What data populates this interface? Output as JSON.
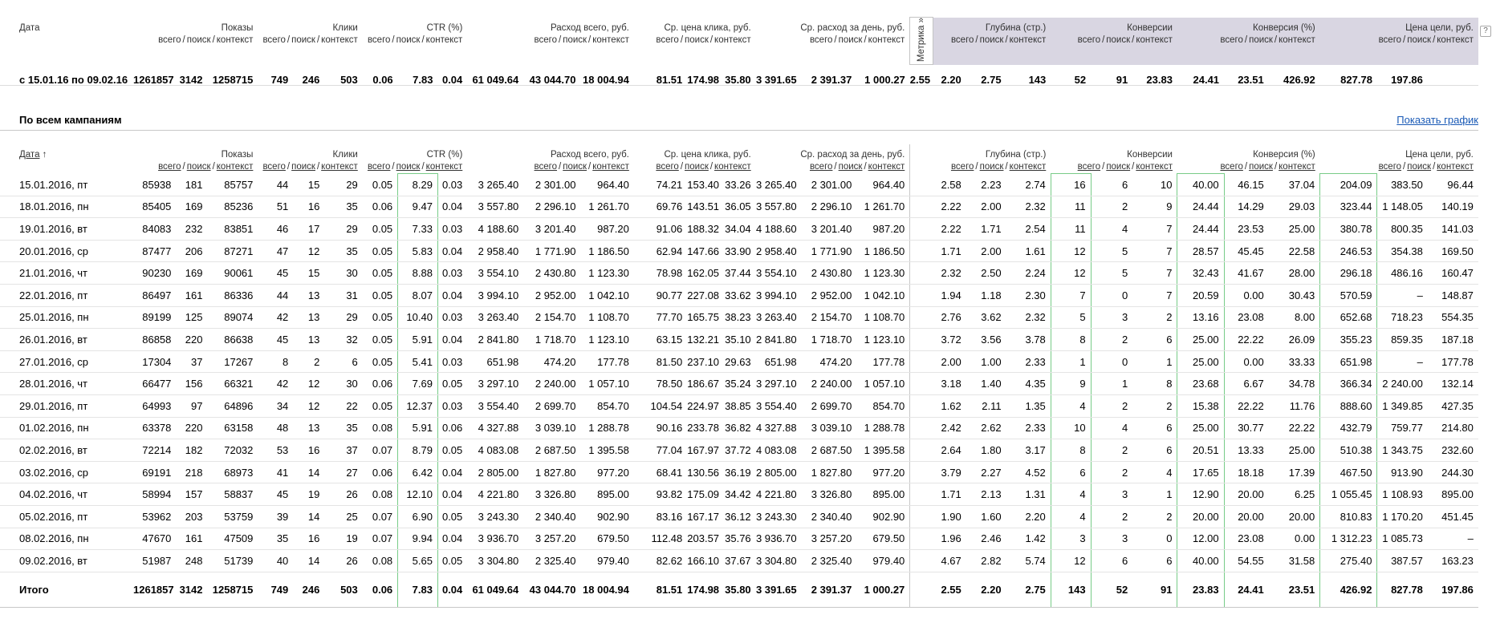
{
  "columns": {
    "date": "Дата",
    "sort_arrow": "↑",
    "groups": [
      "Показы",
      "Клики",
      "CTR (%)",
      "Расход всего, руб.",
      "Ср. цена клика, руб.",
      "Ср. расход за день, руб.",
      "Глубина (стр.)",
      "Конверсии",
      "Конверсия (%)",
      "Цена цели, руб."
    ],
    "sub": [
      "всего",
      "поиск",
      "контекст"
    ],
    "sep": "/"
  },
  "summary": {
    "metrika_tab": "Метрика »",
    "help": "?",
    "label": "с 15.01.16 по 09.02.16",
    "values": [
      "1261857",
      "3142",
      "1258715",
      "749",
      "246",
      "503",
      "0.06",
      "7.83",
      "0.04",
      "61 049.64",
      "43 044.70",
      "18 004.94",
      "81.51",
      "174.98",
      "35.80",
      "3 391.65",
      "2 391.37",
      "1 000.27",
      "2.55",
      "2.20",
      "2.75",
      "143",
      "52",
      "91",
      "23.83",
      "24.41",
      "23.51",
      "426.92",
      "827.78",
      "197.86"
    ]
  },
  "section": {
    "title": "По всем кампаниям",
    "link": "Показать график"
  },
  "detail": {
    "rows": [
      {
        "date": "15.01.2016, пт",
        "values": [
          "85938",
          "181",
          "85757",
          "44",
          "15",
          "29",
          "0.05",
          "8.29",
          "0.03",
          "3 265.40",
          "2 301.00",
          "964.40",
          "74.21",
          "153.40",
          "33.26",
          "3 265.40",
          "2 301.00",
          "964.40",
          "2.58",
          "2.23",
          "2.74",
          "16",
          "6",
          "10",
          "40.00",
          "46.15",
          "37.04",
          "204.09",
          "383.50",
          "96.44"
        ]
      },
      {
        "date": "18.01.2016, пн",
        "values": [
          "85405",
          "169",
          "85236",
          "51",
          "16",
          "35",
          "0.06",
          "9.47",
          "0.04",
          "3 557.80",
          "2 296.10",
          "1 261.70",
          "69.76",
          "143.51",
          "36.05",
          "3 557.80",
          "2 296.10",
          "1 261.70",
          "2.22",
          "2.00",
          "2.32",
          "11",
          "2",
          "9",
          "24.44",
          "14.29",
          "29.03",
          "323.44",
          "1 148.05",
          "140.19"
        ]
      },
      {
        "date": "19.01.2016, вт",
        "values": [
          "84083",
          "232",
          "83851",
          "46",
          "17",
          "29",
          "0.05",
          "7.33",
          "0.03",
          "4 188.60",
          "3 201.40",
          "987.20",
          "91.06",
          "188.32",
          "34.04",
          "4 188.60",
          "3 201.40",
          "987.20",
          "2.22",
          "1.71",
          "2.54",
          "11",
          "4",
          "7",
          "24.44",
          "23.53",
          "25.00",
          "380.78",
          "800.35",
          "141.03"
        ]
      },
      {
        "date": "20.01.2016, ср",
        "values": [
          "87477",
          "206",
          "87271",
          "47",
          "12",
          "35",
          "0.05",
          "5.83",
          "0.04",
          "2 958.40",
          "1 771.90",
          "1 186.50",
          "62.94",
          "147.66",
          "33.90",
          "2 958.40",
          "1 771.90",
          "1 186.50",
          "1.71",
          "2.00",
          "1.61",
          "12",
          "5",
          "7",
          "28.57",
          "45.45",
          "22.58",
          "246.53",
          "354.38",
          "169.50"
        ]
      },
      {
        "date": "21.01.2016, чт",
        "values": [
          "90230",
          "169",
          "90061",
          "45",
          "15",
          "30",
          "0.05",
          "8.88",
          "0.03",
          "3 554.10",
          "2 430.80",
          "1 123.30",
          "78.98",
          "162.05",
          "37.44",
          "3 554.10",
          "2 430.80",
          "1 123.30",
          "2.32",
          "2.50",
          "2.24",
          "12",
          "5",
          "7",
          "32.43",
          "41.67",
          "28.00",
          "296.18",
          "486.16",
          "160.47"
        ]
      },
      {
        "date": "22.01.2016, пт",
        "values": [
          "86497",
          "161",
          "86336",
          "44",
          "13",
          "31",
          "0.05",
          "8.07",
          "0.04",
          "3 994.10",
          "2 952.00",
          "1 042.10",
          "90.77",
          "227.08",
          "33.62",
          "3 994.10",
          "2 952.00",
          "1 042.10",
          "1.94",
          "1.18",
          "2.30",
          "7",
          "0",
          "7",
          "20.59",
          "0.00",
          "30.43",
          "570.59",
          "–",
          "148.87"
        ]
      },
      {
        "date": "25.01.2016, пн",
        "values": [
          "89199",
          "125",
          "89074",
          "42",
          "13",
          "29",
          "0.05",
          "10.40",
          "0.03",
          "3 263.40",
          "2 154.70",
          "1 108.70",
          "77.70",
          "165.75",
          "38.23",
          "3 263.40",
          "2 154.70",
          "1 108.70",
          "2.76",
          "3.62",
          "2.32",
          "5",
          "3",
          "2",
          "13.16",
          "23.08",
          "8.00",
          "652.68",
          "718.23",
          "554.35"
        ]
      },
      {
        "date": "26.01.2016, вт",
        "values": [
          "86858",
          "220",
          "86638",
          "45",
          "13",
          "32",
          "0.05",
          "5.91",
          "0.04",
          "2 841.80",
          "1 718.70",
          "1 123.10",
          "63.15",
          "132.21",
          "35.10",
          "2 841.80",
          "1 718.70",
          "1 123.10",
          "3.72",
          "3.56",
          "3.78",
          "8",
          "2",
          "6",
          "25.00",
          "22.22",
          "26.09",
          "355.23",
          "859.35",
          "187.18"
        ]
      },
      {
        "date": "27.01.2016, ср",
        "values": [
          "17304",
          "37",
          "17267",
          "8",
          "2",
          "6",
          "0.05",
          "5.41",
          "0.03",
          "651.98",
          "474.20",
          "177.78",
          "81.50",
          "237.10",
          "29.63",
          "651.98",
          "474.20",
          "177.78",
          "2.00",
          "1.00",
          "2.33",
          "1",
          "0",
          "1",
          "25.00",
          "0.00",
          "33.33",
          "651.98",
          "–",
          "177.78"
        ]
      },
      {
        "date": "28.01.2016, чт",
        "values": [
          "66477",
          "156",
          "66321",
          "42",
          "12",
          "30",
          "0.06",
          "7.69",
          "0.05",
          "3 297.10",
          "2 240.00",
          "1 057.10",
          "78.50",
          "186.67",
          "35.24",
          "3 297.10",
          "2 240.00",
          "1 057.10",
          "3.18",
          "1.40",
          "4.35",
          "9",
          "1",
          "8",
          "23.68",
          "6.67",
          "34.78",
          "366.34",
          "2 240.00",
          "132.14"
        ]
      },
      {
        "date": "29.01.2016, пт",
        "values": [
          "64993",
          "97",
          "64896",
          "34",
          "12",
          "22",
          "0.05",
          "12.37",
          "0.03",
          "3 554.40",
          "2 699.70",
          "854.70",
          "104.54",
          "224.97",
          "38.85",
          "3 554.40",
          "2 699.70",
          "854.70",
          "1.62",
          "2.11",
          "1.35",
          "4",
          "2",
          "2",
          "15.38",
          "22.22",
          "11.76",
          "888.60",
          "1 349.85",
          "427.35"
        ]
      },
      {
        "date": "01.02.2016, пн",
        "values": [
          "63378",
          "220",
          "63158",
          "48",
          "13",
          "35",
          "0.08",
          "5.91",
          "0.06",
          "4 327.88",
          "3 039.10",
          "1 288.78",
          "90.16",
          "233.78",
          "36.82",
          "4 327.88",
          "3 039.10",
          "1 288.78",
          "2.42",
          "2.62",
          "2.33",
          "10",
          "4",
          "6",
          "25.00",
          "30.77",
          "22.22",
          "432.79",
          "759.77",
          "214.80"
        ]
      },
      {
        "date": "02.02.2016, вт",
        "values": [
          "72214",
          "182",
          "72032",
          "53",
          "16",
          "37",
          "0.07",
          "8.79",
          "0.05",
          "4 083.08",
          "2 687.50",
          "1 395.58",
          "77.04",
          "167.97",
          "37.72",
          "4 083.08",
          "2 687.50",
          "1 395.58",
          "2.64",
          "1.80",
          "3.17",
          "8",
          "2",
          "6",
          "20.51",
          "13.33",
          "25.00",
          "510.38",
          "1 343.75",
          "232.60"
        ]
      },
      {
        "date": "03.02.2016, ср",
        "values": [
          "69191",
          "218",
          "68973",
          "41",
          "14",
          "27",
          "0.06",
          "6.42",
          "0.04",
          "2 805.00",
          "1 827.80",
          "977.20",
          "68.41",
          "130.56",
          "36.19",
          "2 805.00",
          "1 827.80",
          "977.20",
          "3.79",
          "2.27",
          "4.52",
          "6",
          "2",
          "4",
          "17.65",
          "18.18",
          "17.39",
          "467.50",
          "913.90",
          "244.30"
        ]
      },
      {
        "date": "04.02.2016, чт",
        "values": [
          "58994",
          "157",
          "58837",
          "45",
          "19",
          "26",
          "0.08",
          "12.10",
          "0.04",
          "4 221.80",
          "3 326.80",
          "895.00",
          "93.82",
          "175.09",
          "34.42",
          "4 221.80",
          "3 326.80",
          "895.00",
          "1.71",
          "2.13",
          "1.31",
          "4",
          "3",
          "1",
          "12.90",
          "20.00",
          "6.25",
          "1 055.45",
          "1 108.93",
          "895.00"
        ]
      },
      {
        "date": "05.02.2016, пт",
        "values": [
          "53962",
          "203",
          "53759",
          "39",
          "14",
          "25",
          "0.07",
          "6.90",
          "0.05",
          "3 243.30",
          "2 340.40",
          "902.90",
          "83.16",
          "167.17",
          "36.12",
          "3 243.30",
          "2 340.40",
          "902.90",
          "1.90",
          "1.60",
          "2.20",
          "4",
          "2",
          "2",
          "20.00",
          "20.00",
          "20.00",
          "810.83",
          "1 170.20",
          "451.45"
        ]
      },
      {
        "date": "08.02.2016, пн",
        "values": [
          "47670",
          "161",
          "47509",
          "35",
          "16",
          "19",
          "0.07",
          "9.94",
          "0.04",
          "3 936.70",
          "3 257.20",
          "679.50",
          "112.48",
          "203.57",
          "35.76",
          "3 936.70",
          "3 257.20",
          "679.50",
          "1.96",
          "2.46",
          "1.42",
          "3",
          "3",
          "0",
          "12.00",
          "23.08",
          "0.00",
          "1 312.23",
          "1 085.73",
          "–"
        ]
      },
      {
        "date": "09.02.2016, вт",
        "values": [
          "51987",
          "248",
          "51739",
          "40",
          "14",
          "26",
          "0.08",
          "5.65",
          "0.05",
          "3 304.80",
          "2 325.40",
          "979.40",
          "82.62",
          "166.10",
          "37.67",
          "3 304.80",
          "2 325.40",
          "979.40",
          "4.67",
          "2.82",
          "5.74",
          "12",
          "6",
          "6",
          "40.00",
          "54.55",
          "31.58",
          "275.40",
          "387.57",
          "163.23"
        ]
      }
    ],
    "total": {
      "label": "Итого",
      "values": [
        "1261857",
        "3142",
        "1258715",
        "749",
        "246",
        "503",
        "0.06",
        "7.83",
        "0.04",
        "61 049.64",
        "43 044.70",
        "18 004.94",
        "81.51",
        "174.98",
        "35.80",
        "3 391.65",
        "2 391.37",
        "1 000.27",
        "2.55",
        "2.20",
        "2.75",
        "143",
        "52",
        "91",
        "23.83",
        "24.41",
        "23.51",
        "426.92",
        "827.78",
        "197.86"
      ]
    }
  }
}
